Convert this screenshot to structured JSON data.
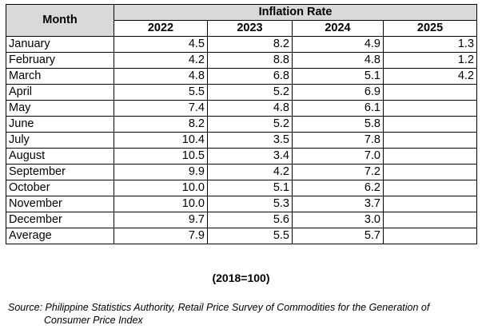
{
  "header": {
    "month_label": "Month",
    "group_label": "Inflation Rate",
    "years": [
      "2022",
      "2023",
      "2024",
      "2025"
    ]
  },
  "rows": [
    {
      "month": "January",
      "values": [
        "4.5",
        "8.2",
        "4.9",
        "1.3"
      ]
    },
    {
      "month": "February",
      "values": [
        "4.2",
        "8.8",
        "4.8",
        "1.2"
      ]
    },
    {
      "month": "March",
      "values": [
        "4.8",
        "6.8",
        "5.1",
        "4.2"
      ]
    },
    {
      "month": "April",
      "values": [
        "5.5",
        "5.2",
        "6.9",
        ""
      ]
    },
    {
      "month": "May",
      "values": [
        "7.4",
        "4.8",
        "6.1",
        ""
      ]
    },
    {
      "month": "June",
      "values": [
        "8.2",
        "5.2",
        "5.8",
        ""
      ]
    },
    {
      "month": "July",
      "values": [
        "10.4",
        "3.5",
        "7.8",
        ""
      ]
    },
    {
      "month": "August",
      "values": [
        "10.5",
        "3.4",
        "7.0",
        ""
      ]
    },
    {
      "month": "September",
      "values": [
        "9.9",
        "4.2",
        "7.2",
        ""
      ]
    },
    {
      "month": "October",
      "values": [
        "10.0",
        "5.1",
        "6.2",
        ""
      ]
    },
    {
      "month": "November",
      "values": [
        "10.0",
        "5.3",
        "3.7",
        ""
      ]
    },
    {
      "month": "December",
      "values": [
        "9.7",
        "5.6",
        "3.0",
        ""
      ]
    },
    {
      "month": "Average",
      "values": [
        "7.9",
        "5.5",
        "5.7",
        ""
      ]
    }
  ],
  "base_note": "(2018=100)",
  "source": {
    "line1": "Source: Philippine Statistics Authority, Retail Price Survey of Commodities for the Generation of",
    "line2": "Consumer Price Index"
  }
}
